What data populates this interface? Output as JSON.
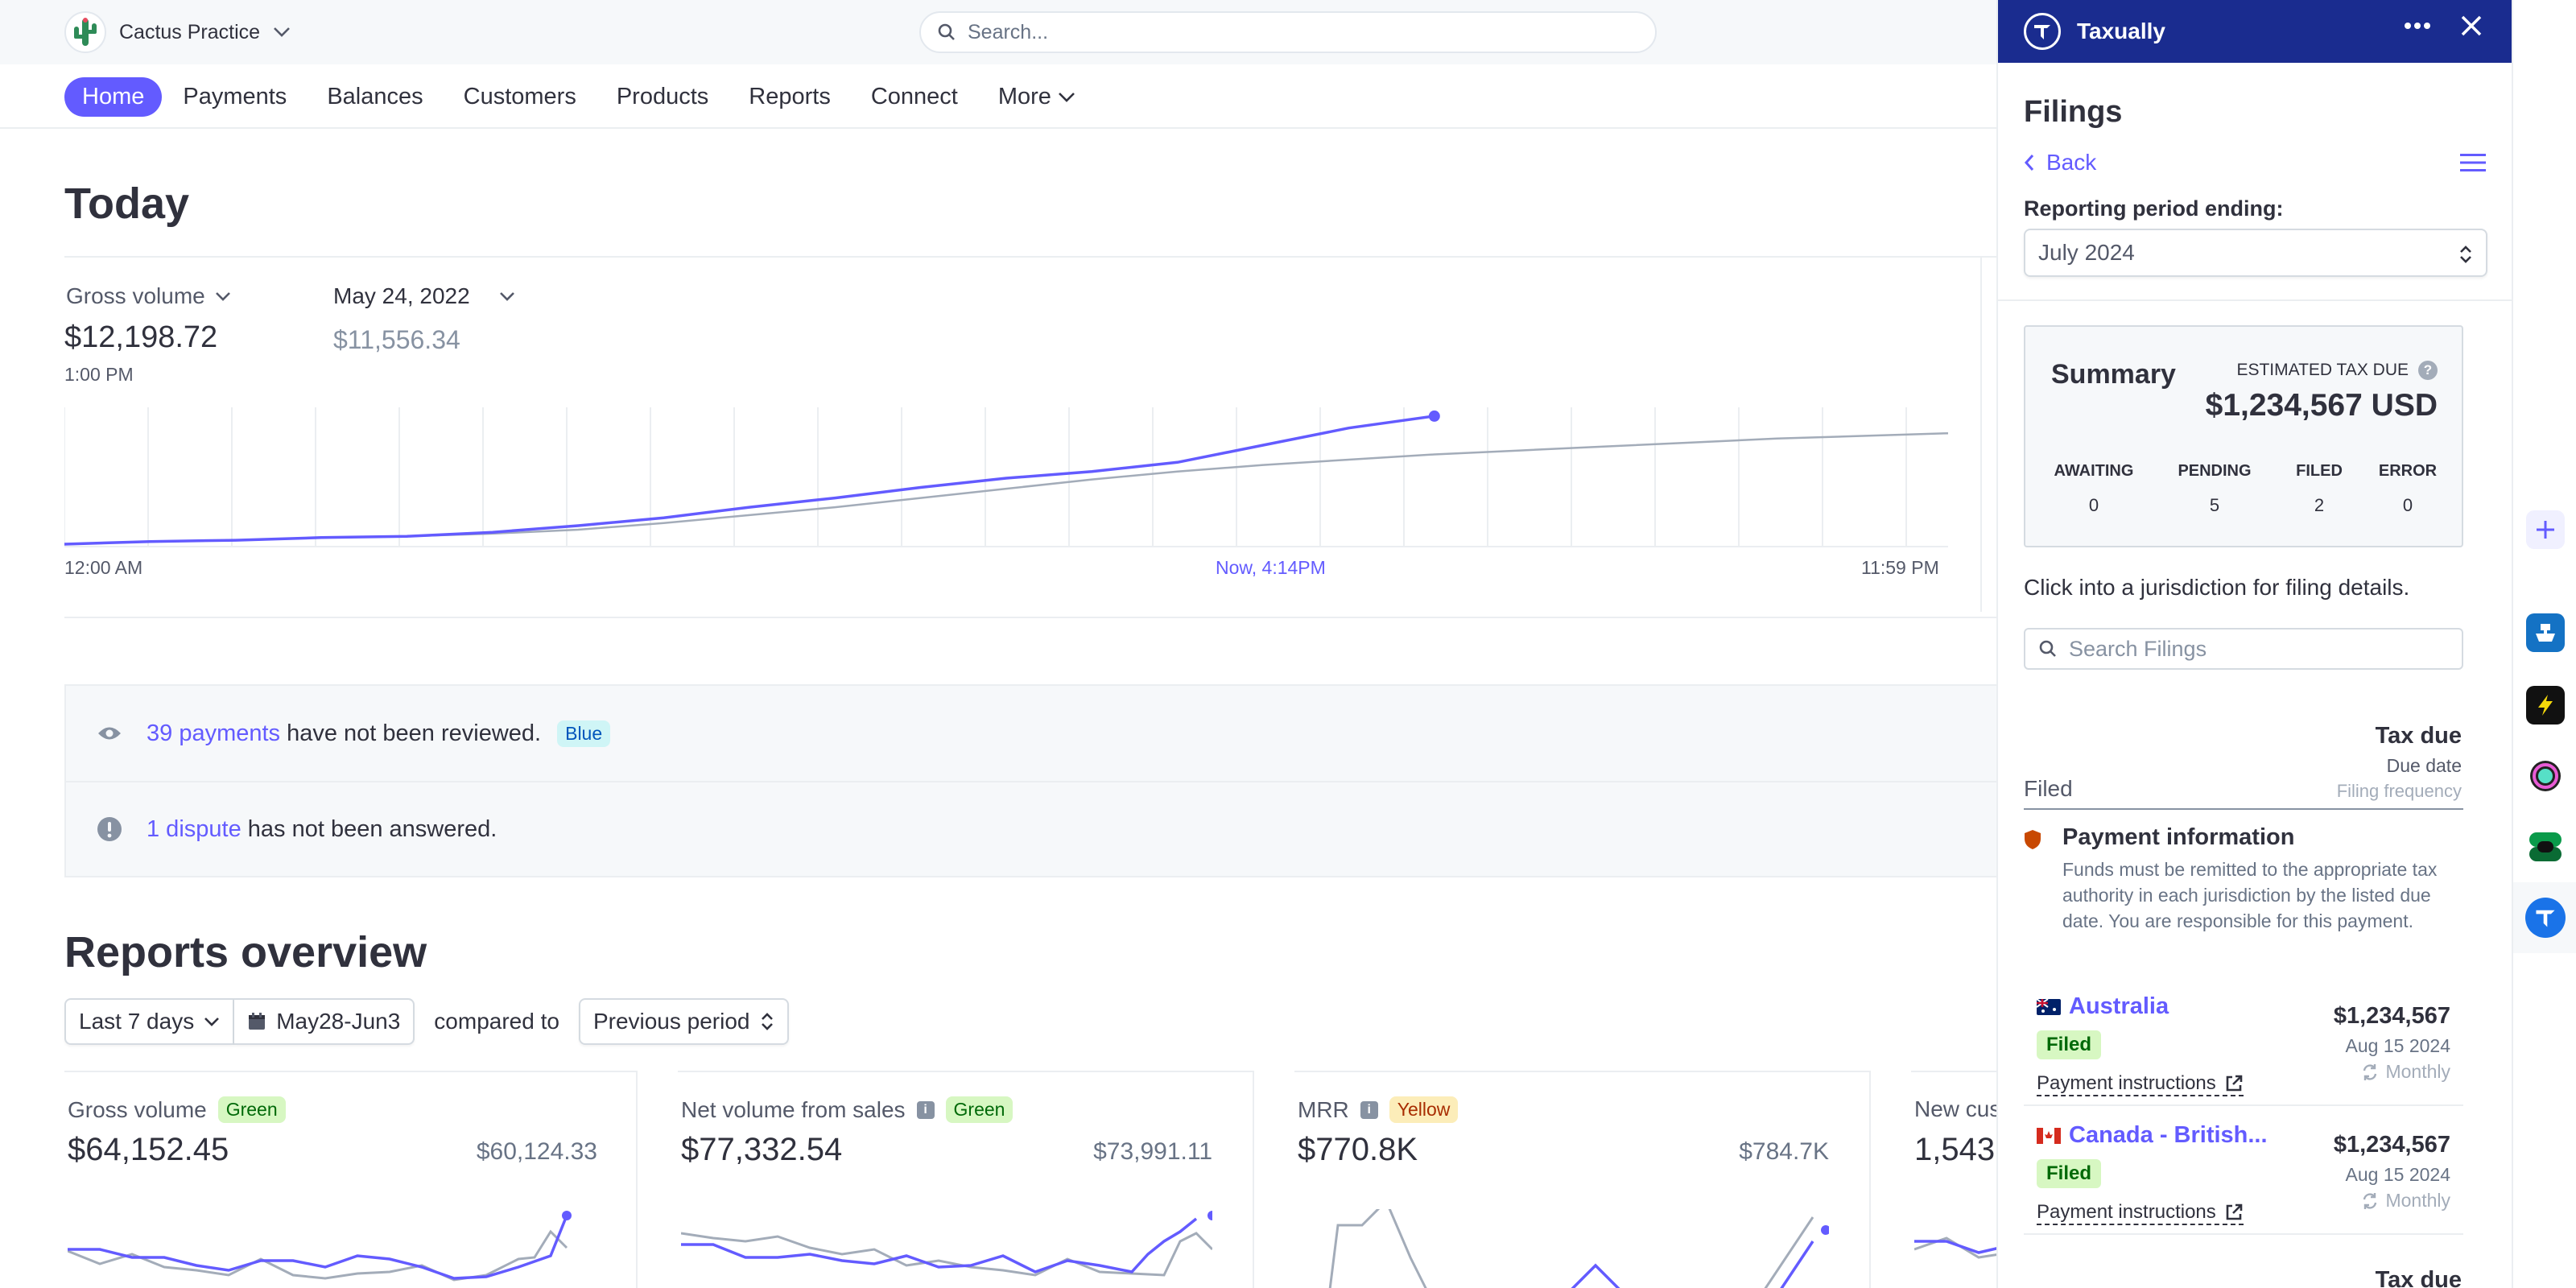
{
  "header": {
    "account_name": "Cactus Practice",
    "search_placeholder": "Search..."
  },
  "nav": {
    "items": [
      {
        "label": "Home",
        "active": true
      },
      {
        "label": "Payments"
      },
      {
        "label": "Balances"
      },
      {
        "label": "Customers"
      },
      {
        "label": "Products"
      },
      {
        "label": "Reports"
      },
      {
        "label": "Connect"
      },
      {
        "label": "More"
      }
    ]
  },
  "today": {
    "title": "Today",
    "metric_label": "Gross volume",
    "metric_value": "$12,198.72",
    "metric_time": "1:00 PM",
    "compare_label": "May 24, 2022",
    "compare_value": "$11,556.34",
    "axis_start": "12:00 AM",
    "axis_now": "Now, 4:14PM",
    "axis_end": "11:59 PM"
  },
  "alerts": [
    {
      "link": "39 payments",
      "text": " have not been reviewed.",
      "badge": "Blue"
    },
    {
      "link": "1 dispute",
      "text": " has not been answered."
    }
  ],
  "reports": {
    "title": "Reports overview",
    "range": "Last 7 days",
    "dates": "May28-Jun3",
    "compared_to": "compared to",
    "previous": "Previous period",
    "metrics": [
      {
        "label": "Gross volume",
        "badge": "Green",
        "value": "$64,152.45",
        "prev": "$60,124.33"
      },
      {
        "label": "Net volume from sales",
        "badge": "Green",
        "value": "$77,332.54",
        "prev": "$73,991.11"
      },
      {
        "label": "MRR",
        "badge": "Yellow",
        "value": "$770.8K",
        "prev": "$784.7K"
      },
      {
        "label": "New cus",
        "value": "1,543"
      }
    ]
  },
  "panel": {
    "app_name": "Taxually",
    "title": "Filings",
    "back": "Back",
    "period_label": "Reporting period ending:",
    "period_value": "July 2024",
    "summary": {
      "title": "Summary",
      "est_label": "ESTIMATED TAX DUE",
      "amount": "$1,234,567 USD",
      "stats": [
        {
          "k": "AWAITING",
          "v": "0"
        },
        {
          "k": "PENDING",
          "v": "5"
        },
        {
          "k": "FILED",
          "v": "2"
        },
        {
          "k": "ERROR",
          "v": "0"
        }
      ]
    },
    "hint": "Click into a jurisdiction for filing details.",
    "search_placeholder": "Search Filings",
    "table": {
      "tax_due": "Tax due",
      "due_date": "Due date",
      "frequency": "Filing frequency",
      "filed": "Filed"
    },
    "payment_info": {
      "title": "Payment information",
      "body": "Funds must be remitted to the appropriate tax authority in each jurisdiction by the listed due date. You are responsible for this payment."
    },
    "filings": [
      {
        "name": "Australia",
        "status": "Filed",
        "link": "Payment instructions",
        "amount": "$1,234,567",
        "due": "Aug 15 2024",
        "freq": "Monthly"
      },
      {
        "name": "Canada - British...",
        "status": "Filed",
        "link": "Payment instructions",
        "amount": "$1,234,567",
        "due": "Aug 15 2024",
        "freq": "Monthly"
      }
    ]
  },
  "colors": {
    "accent": "#635bff",
    "panel_header": "#1a2c8f",
    "text": "#30313d",
    "muted": "#687385"
  },
  "chart_data": {
    "type": "line",
    "series": [
      {
        "values": [
          0,
          2,
          3,
          5,
          6,
          9,
          14,
          20,
          28,
          35,
          43,
          50,
          55,
          62,
          75,
          88,
          97
        ]
      },
      {
        "values": [
          0,
          2,
          3,
          5,
          6,
          8,
          11,
          16,
          22,
          28,
          35,
          42,
          49,
          55,
          60,
          64,
          68,
          71,
          74,
          77,
          80,
          82,
          84
        ]
      }
    ]
  }
}
